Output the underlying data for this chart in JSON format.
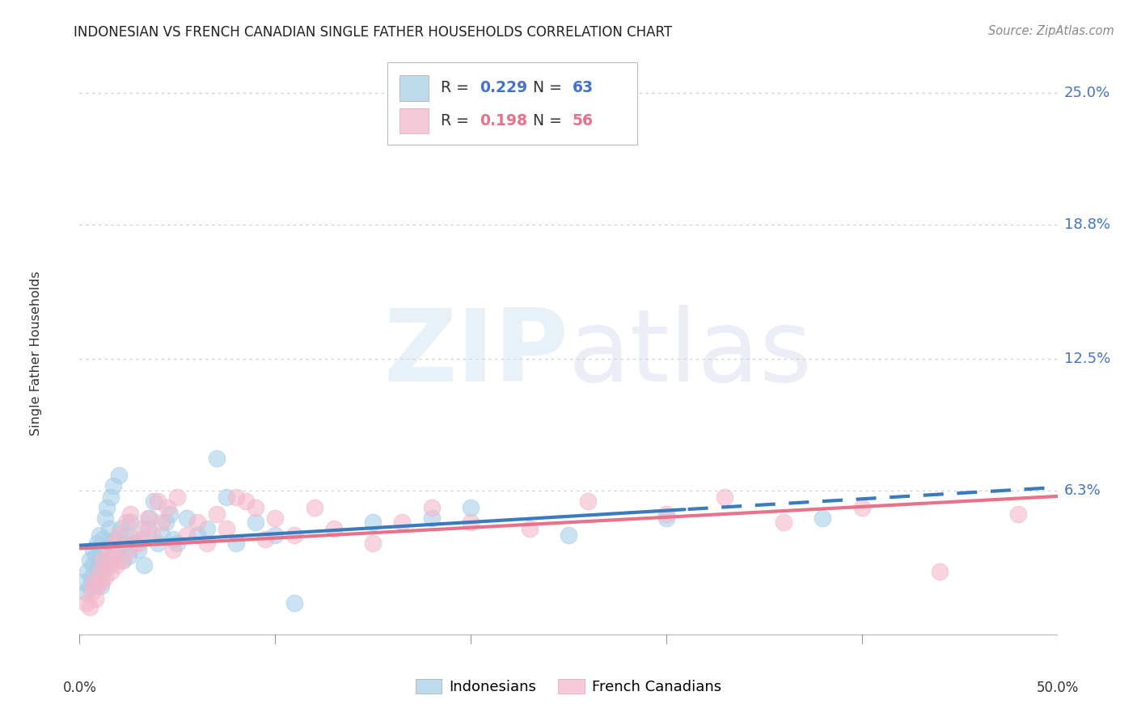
{
  "title": "INDONESIAN VS FRENCH CANADIAN SINGLE FATHER HOUSEHOLDS CORRELATION CHART",
  "source": "Source: ZipAtlas.com",
  "ylabel": "Single Father Households",
  "ytick_labels": [
    "6.3%",
    "12.5%",
    "18.8%",
    "25.0%"
  ],
  "ytick_values": [
    6.3,
    12.5,
    18.8,
    25.0
  ],
  "xmin": 0.0,
  "xmax": 50.0,
  "ymin": -1.5,
  "ymax": 27.0,
  "indonesian_color": "#a8cfe8",
  "french_color": "#f4b8cb",
  "indonesian_line_color": "#3a7abf",
  "french_line_color": "#e8728a",
  "R_indonesian": 0.229,
  "N_indonesian": 63,
  "R_french": 0.198,
  "N_french": 56,
  "indonesian_x": [
    0.2,
    0.3,
    0.4,
    0.5,
    0.5,
    0.6,
    0.7,
    0.7,
    0.8,
    0.8,
    0.9,
    0.9,
    1.0,
    1.0,
    1.1,
    1.1,
    1.2,
    1.2,
    1.3,
    1.3,
    1.4,
    1.5,
    1.5,
    1.6,
    1.6,
    1.7,
    1.8,
    1.9,
    2.0,
    2.1,
    2.2,
    2.3,
    2.4,
    2.5,
    2.6,
    2.8,
    3.0,
    3.2,
    3.3,
    3.5,
    3.6,
    3.8,
    4.0,
    4.2,
    4.4,
    4.6,
    4.8,
    5.0,
    5.5,
    6.0,
    6.5,
    7.0,
    7.5,
    8.0,
    9.0,
    10.0,
    11.0,
    15.0,
    18.0,
    20.0,
    25.0,
    30.0,
    38.0
  ],
  "indonesian_y": [
    2.0,
    1.5,
    2.5,
    1.8,
    3.0,
    2.2,
    2.8,
    3.5,
    2.0,
    3.2,
    2.5,
    3.8,
    3.0,
    4.2,
    1.8,
    3.5,
    4.0,
    2.5,
    5.0,
    3.0,
    5.5,
    4.5,
    2.8,
    6.0,
    3.8,
    6.5,
    4.0,
    3.5,
    7.0,
    4.5,
    3.0,
    3.8,
    4.2,
    3.2,
    4.8,
    3.8,
    3.5,
    4.0,
    2.8,
    4.5,
    5.0,
    5.8,
    3.8,
    4.2,
    4.8,
    5.2,
    4.0,
    3.8,
    5.0,
    4.2,
    4.5,
    7.8,
    6.0,
    3.8,
    4.8,
    4.2,
    1.0,
    4.8,
    5.0,
    5.5,
    4.2,
    5.0,
    5.0
  ],
  "french_x": [
    0.3,
    0.5,
    0.6,
    0.7,
    0.8,
    0.9,
    1.0,
    1.1,
    1.2,
    1.3,
    1.4,
    1.5,
    1.6,
    1.7,
    1.8,
    1.9,
    2.0,
    2.2,
    2.4,
    2.5,
    2.6,
    2.8,
    3.0,
    3.2,
    3.5,
    3.7,
    4.0,
    4.2,
    4.5,
    4.8,
    5.0,
    5.5,
    6.0,
    6.5,
    7.0,
    7.5,
    8.0,
    8.5,
    9.0,
    9.5,
    10.0,
    11.0,
    12.0,
    13.0,
    15.0,
    16.5,
    18.0,
    20.0,
    23.0,
    26.0,
    30.0,
    33.0,
    36.0,
    40.0,
    44.0,
    48.0
  ],
  "french_y": [
    1.0,
    0.8,
    1.5,
    2.0,
    1.2,
    1.8,
    2.5,
    2.0,
    3.0,
    2.2,
    2.8,
    3.5,
    2.5,
    3.2,
    3.8,
    2.8,
    4.2,
    3.0,
    4.8,
    3.5,
    5.2,
    4.0,
    3.8,
    4.5,
    5.0,
    4.2,
    5.8,
    4.8,
    5.5,
    3.5,
    6.0,
    4.2,
    4.8,
    3.8,
    5.2,
    4.5,
    6.0,
    5.8,
    5.5,
    4.0,
    5.0,
    4.2,
    5.5,
    4.5,
    3.8,
    4.8,
    5.5,
    4.8,
    4.5,
    5.8,
    5.2,
    6.0,
    4.8,
    5.5,
    2.5,
    5.2
  ]
}
